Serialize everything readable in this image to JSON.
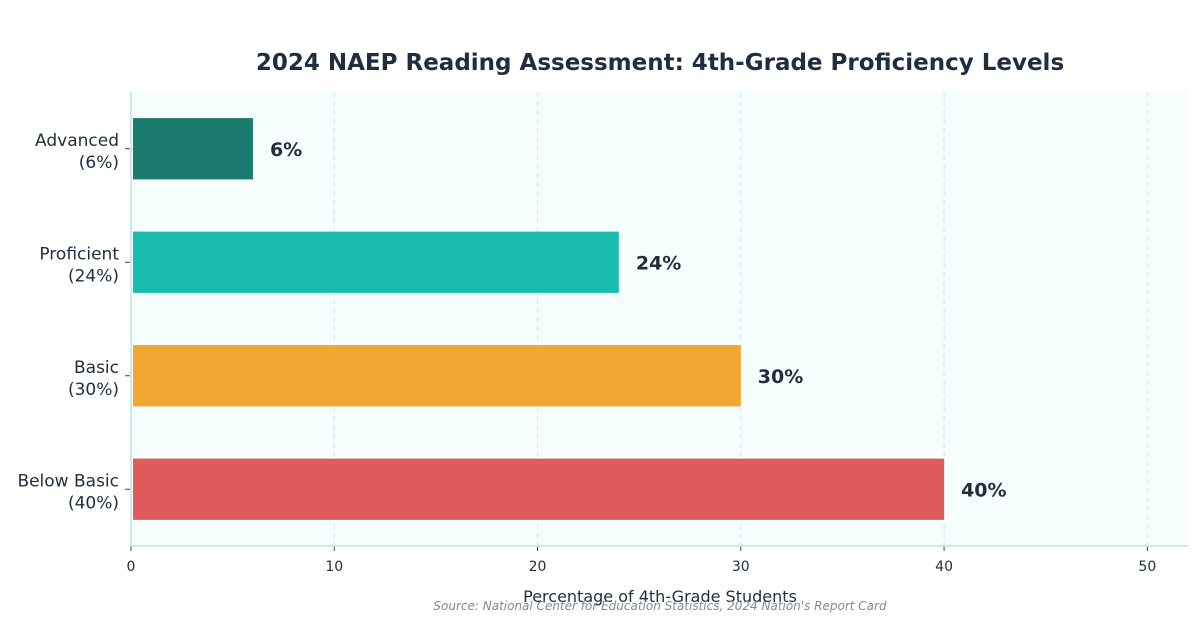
{
  "chart_data": {
    "type": "bar",
    "orientation": "horizontal",
    "title": "2024 NAEP Reading Assessment: 4th-Grade Proficiency Levels",
    "xlabel": "Percentage of 4th-Grade Students",
    "source": "Source: National Center for Education Statistics, 2024 Nation's Report Card",
    "xlim": [
      0,
      52
    ],
    "xticks": [
      0,
      10,
      20,
      30,
      40,
      50
    ],
    "grid": "vertical dashed",
    "legend": "none",
    "bars": [
      {
        "category": "Advanced",
        "label_line2": "(6%)",
        "value": 6,
        "data_label": "6%",
        "color": "#1a7a6e"
      },
      {
        "category": "Proficient",
        "label_line2": "(24%)",
        "value": 24,
        "data_label": "24%",
        "color": "#1abcb0"
      },
      {
        "category": "Basic",
        "label_line2": "(30%)",
        "value": 30,
        "data_label": "30%",
        "color": "#f0a830"
      },
      {
        "category": "Below Basic",
        "label_line2": "(40%)",
        "value": 40,
        "data_label": "40%",
        "color": "#e05c5c"
      }
    ],
    "plot_background": "#f5fdfd",
    "grid_color": "#cdeaea",
    "axis_color": "#bfe3e3"
  }
}
